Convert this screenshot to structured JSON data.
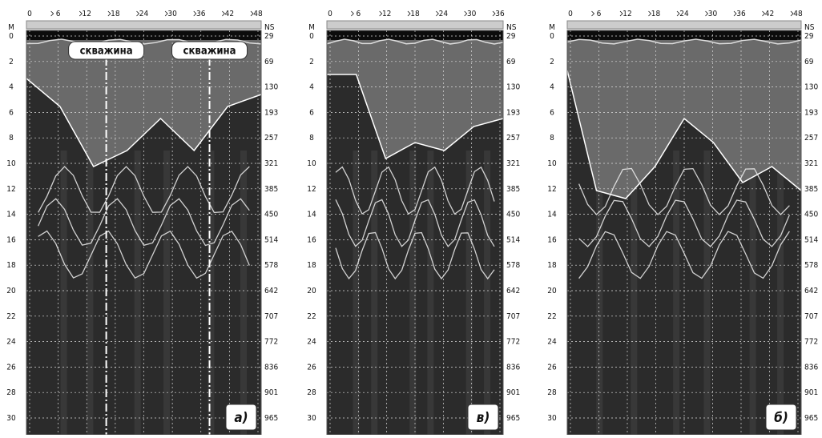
{
  "panels": [
    {
      "x_ticks": [
        0,
        6,
        12,
        18,
        24,
        30,
        36,
        42,
        48
      ],
      "depth_title": "M",
      "depth_ticks": [
        0,
        2,
        4,
        6,
        8,
        10,
        12,
        14,
        16,
        18,
        20,
        22,
        24,
        26,
        28,
        30
      ],
      "time_title": "NS",
      "time_ticks": [
        29,
        69,
        130,
        193,
        257,
        321,
        385,
        450,
        514,
        578,
        642,
        707,
        772,
        836,
        901,
        965
      ],
      "labels": [
        "скважина",
        "скважина"
      ],
      "letter": "а)"
    },
    {
      "x_ticks": [
        0,
        6,
        12,
        18,
        24,
        30,
        36
      ],
      "depth_title": "M",
      "depth_ticks": [
        0,
        2,
        4,
        6,
        8,
        10,
        12,
        14,
        16,
        18,
        20,
        22,
        24,
        26,
        28,
        30
      ],
      "time_title": "NS",
      "time_ticks": [
        29,
        69,
        130,
        193,
        257,
        321,
        385,
        450,
        514,
        578,
        642,
        707,
        772,
        836,
        901,
        965
      ],
      "letter": "в)"
    },
    {
      "x_ticks": [
        0,
        6,
        12,
        18,
        24,
        30,
        36,
        42,
        48
      ],
      "depth_title": "M",
      "depth_ticks": [
        0,
        2,
        4,
        6,
        8,
        10,
        12,
        14,
        16,
        18,
        20,
        22,
        24,
        26,
        28,
        30
      ],
      "time_title": "NS",
      "time_ticks": [
        29,
        69,
        130,
        193,
        257,
        321,
        385,
        450,
        514,
        578,
        642,
        707,
        772,
        836,
        901,
        965
      ],
      "letter": "б)"
    }
  ]
}
